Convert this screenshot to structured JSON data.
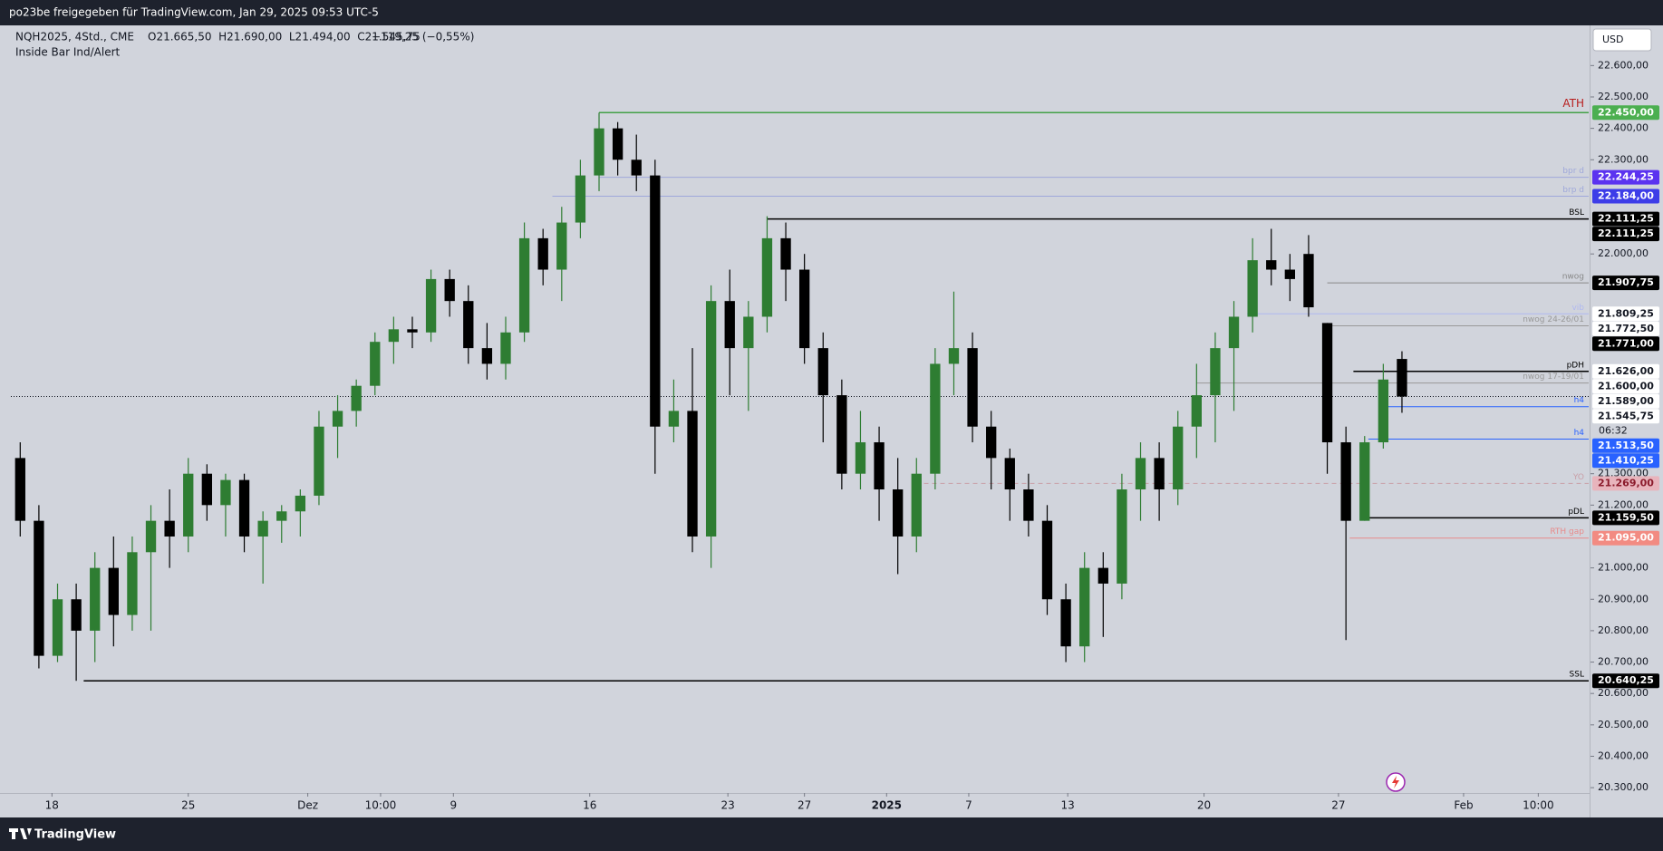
{
  "page": {
    "share": "po23be freigegeben für TradingView.com, Jan 29, 2025 09:53 UTC-5",
    "symbol": "NQH2025, 4Std., CME",
    "ohlc": "O21.665,50  H21.690,00  L21.494,00  C21.545,75",
    "change": "−119,25 (−0,55%)",
    "indicator": "Inside Bar Ind/Alert",
    "currency": "USD",
    "footer": "TradingView"
  },
  "chart_data": {
    "type": "candlestick",
    "up_color": "#2e7d32",
    "down_color": "#000000",
    "open": [
      21350,
      21150,
      20720,
      20900,
      20800,
      21000,
      20850,
      21050,
      21150,
      21100,
      21300,
      21200,
      21280,
      21100,
      21150,
      21180,
      21230,
      21450,
      21500,
      21580,
      21720,
      21760,
      21750,
      21920,
      21850,
      21700,
      21650,
      21750,
      22050,
      21950,
      22100,
      22250,
      22400,
      22300,
      22250,
      21450,
      21500,
      21100,
      21850,
      21700,
      21800,
      22050,
      21950,
      21700,
      21550,
      21300,
      21400,
      21250,
      21100,
      21300,
      21650,
      21700,
      21450,
      21350,
      21250,
      21150,
      20900,
      20750,
      21000,
      20950,
      21250,
      21350,
      21250,
      21450,
      21550,
      21700,
      21800,
      21980,
      21950,
      22000,
      21780,
      21400,
      21150,
      21400,
      21665.5
    ],
    "high": [
      21400,
      21200,
      20950,
      20950,
      21050,
      21100,
      21100,
      21200,
      21250,
      21350,
      21330,
      21300,
      21300,
      21180,
      21200,
      21250,
      21500,
      21550,
      21600,
      21750,
      21800,
      21800,
      21950,
      21950,
      21900,
      21780,
      21800,
      22100,
      22080,
      22150,
      22300,
      22450,
      22420,
      22380,
      22300,
      21600,
      21700,
      21900,
      21950,
      21850,
      22120,
      22100,
      22000,
      21750,
      21600,
      21500,
      21450,
      21350,
      21350,
      21700,
      21880,
      21750,
      21500,
      21380,
      21300,
      21200,
      20950,
      21050,
      21050,
      21300,
      21400,
      21400,
      21500,
      21650,
      21750,
      21850,
      22050,
      22080,
      22000,
      22060,
      21780,
      21450,
      21420,
      21650,
      21690
    ],
    "low": [
      21100,
      20680,
      20700,
      20640.25,
      20700,
      20750,
      20800,
      20800,
      21000,
      21050,
      21150,
      21100,
      21050,
      20950,
      21080,
      21100,
      21200,
      21350,
      21450,
      21550,
      21650,
      21700,
      21720,
      21800,
      21650,
      21600,
      21600,
      21720,
      21900,
      21850,
      22050,
      22200,
      22250,
      22200,
      21300,
      21400,
      21050,
      21000,
      21550,
      21500,
      21750,
      21850,
      21650,
      21400,
      21250,
      21250,
      21150,
      20980,
      21050,
      21250,
      21550,
      21400,
      21250,
      21150,
      21100,
      20850,
      20700,
      20700,
      20780,
      20900,
      21150,
      21150,
      21200,
      21350,
      21400,
      21500,
      21750,
      21900,
      21850,
      21800,
      21300,
      20770,
      21150,
      21380,
      21494
    ],
    "close": [
      21150,
      20720,
      20900,
      20800,
      21000,
      20850,
      21050,
      21150,
      21100,
      21300,
      21200,
      21280,
      21100,
      21150,
      21180,
      21230,
      21450,
      21500,
      21580,
      21720,
      21760,
      21750,
      21920,
      21850,
      21700,
      21650,
      21750,
      22050,
      21950,
      22100,
      22250,
      22400,
      22300,
      22250,
      21450,
      21500,
      21100,
      21850,
      21700,
      21800,
      22050,
      21950,
      21700,
      21550,
      21300,
      21400,
      21250,
      21100,
      21300,
      21650,
      21700,
      21450,
      21350,
      21250,
      21150,
      20900,
      20750,
      21000,
      20950,
      21250,
      21350,
      21250,
      21450,
      21550,
      21700,
      21800,
      21980,
      21950,
      21920,
      21830,
      21400,
      21150,
      21400,
      21600,
      21545.75
    ],
    "xlim": [
      -0.5,
      84
    ],
    "xticks": [
      {
        "value": 1.7,
        "label": "18"
      },
      {
        "value": 9.0,
        "label": "25"
      },
      {
        "value": 15.4,
        "label": "Dez"
      },
      {
        "value": 19.3,
        "label": "10:00"
      },
      {
        "value": 23.2,
        "label": "9"
      },
      {
        "value": 30.5,
        "label": "16"
      },
      {
        "value": 37.9,
        "label": "23"
      },
      {
        "value": 42.0,
        "label": "27"
      },
      {
        "value": 46.4,
        "label": "2025"
      },
      {
        "value": 50.8,
        "label": "7"
      },
      {
        "value": 56.1,
        "label": "13"
      },
      {
        "value": 63.4,
        "label": "20"
      },
      {
        "value": 70.6,
        "label": "27"
      },
      {
        "value": 77.3,
        "label": "Feb"
      },
      {
        "value": 81.3,
        "label": "10:00"
      }
    ],
    "ylim": [
      20283,
      22728
    ],
    "yticks": [
      {
        "value": 22600,
        "label": "22.600,00"
      },
      {
        "value": 22500,
        "label": "22.500,00"
      },
      {
        "value": 22400,
        "label": "22.400,00"
      },
      {
        "value": 22300,
        "label": "22.300,00"
      },
      {
        "value": 22000,
        "label": "22.000,00"
      },
      {
        "value": 21300,
        "label": "21.300,00"
      },
      {
        "value": 21200,
        "label": "21.200,00"
      },
      {
        "value": 21000,
        "label": "21.000,00"
      },
      {
        "value": 20900,
        "label": "20.900,00"
      },
      {
        "value": 20800,
        "label": "20.800,00"
      },
      {
        "value": 20700,
        "label": "20.700,00"
      },
      {
        "value": 20600,
        "label": "20.600,00"
      },
      {
        "value": 20500,
        "label": "20.500,00"
      },
      {
        "value": 20400,
        "label": "20.400,00"
      },
      {
        "value": 20300,
        "label": "20.300,00"
      }
    ],
    "levels": [
      {
        "name": "ATH",
        "value": 22450,
        "color": "#43a047"
      },
      {
        "name": "bpr d",
        "value": 22244.25,
        "color": "#9fa8da"
      },
      {
        "name": "brp d",
        "value": 22184,
        "color": "#9fa8da"
      },
      {
        "name": "BSL",
        "value": 22111.25,
        "color": "#000000"
      },
      {
        "name": "nwog",
        "value": 21907.75,
        "color": "#888888"
      },
      {
        "name": "vib",
        "value": 21809.25,
        "color": "#b0b8f0"
      },
      {
        "name": "nwog 24-26/01",
        "value": 21771,
        "color": "#999999"
      },
      {
        "name": "pDH",
        "value": 21626,
        "color": "#000000"
      },
      {
        "name": "nwog 17-19/01",
        "value": 21589,
        "color": "#999999"
      },
      {
        "name": "h4",
        "value": 21513.5,
        "color": "#2962ff"
      },
      {
        "name": "h4",
        "value": 21410.25,
        "color": "#2962ff"
      },
      {
        "name": "YO",
        "value": 21269,
        "color": "#c9a0a8"
      },
      {
        "name": "pDL",
        "value": 21159.5,
        "color": "#000000"
      },
      {
        "name": "RTH gap",
        "value": 21095,
        "color": "#e88a8a"
      },
      {
        "name": "SSL",
        "value": 20640.25,
        "color": "#000000"
      }
    ],
    "price_labels": [
      {
        "value": 22450,
        "label": "22.450,00",
        "color": "#4caf50",
        "text_color": "#ffffff"
      },
      {
        "value": 22244.25,
        "label": "22.244,25",
        "color": "#5b33f0",
        "text_color": "#ffffff"
      },
      {
        "value": 22184,
        "label": "22.184,00",
        "color": "#3d3de8",
        "text_color": "#ffffff"
      },
      {
        "value": 22111.25,
        "label": "22.111,25",
        "color": "#000000",
        "text_color": "#ffffff"
      },
      {
        "value": 22111.25,
        "label": "22.111,25",
        "color": "#000000",
        "text_color": "#ffffff"
      },
      {
        "value": 21907.75,
        "label": "21.907,75",
        "color": "#000000",
        "text_color": "#ffffff"
      },
      {
        "value": 21809.25,
        "label": "21.809,25",
        "color": "#ffffff",
        "text_color": "#131722"
      },
      {
        "value": 21772.5,
        "label": "21.772,50",
        "color": "#ffffff",
        "text_color": "#131722"
      },
      {
        "value": 21771,
        "label": "21.771,00",
        "color": "#000000",
        "text_color": "#ffffff"
      },
      {
        "value": 21626,
        "label": "21.626,00",
        "color": "#ffffff",
        "text_color": "#131722"
      },
      {
        "value": 21600,
        "label": "21.600,00",
        "color": "#ffffff",
        "text_color": "#131722"
      },
      {
        "value": 21589,
        "label": "21.589,00",
        "color": "#ffffff",
        "text_color": "#131722"
      },
      {
        "value": 21545.75,
        "label": "21.545,75",
        "color": "#ffffff",
        "text_color": "#131722"
      },
      {
        "value": 21513.5,
        "label": "21.513,50",
        "color": "#2962ff",
        "text_color": "#ffffff"
      },
      {
        "value": 21410.25,
        "label": "21.410,25",
        "color": "#2962ff",
        "text_color": "#ffffff"
      },
      {
        "value": 21269,
        "label": "21.269,00",
        "color": "#e8b4bc",
        "text_color": "#8b1a2b"
      },
      {
        "value": 21159.5,
        "label": "21.159,50",
        "color": "#000000",
        "text_color": "#ffffff"
      },
      {
        "value": 21095,
        "label": "21.095,00",
        "color": "#f28b82",
        "text_color": "#ffffff"
      },
      {
        "value": 20640.25,
        "label": "20.640,25",
        "color": "#000000",
        "text_color": "#ffffff"
      }
    ],
    "countdown": "06:32"
  }
}
